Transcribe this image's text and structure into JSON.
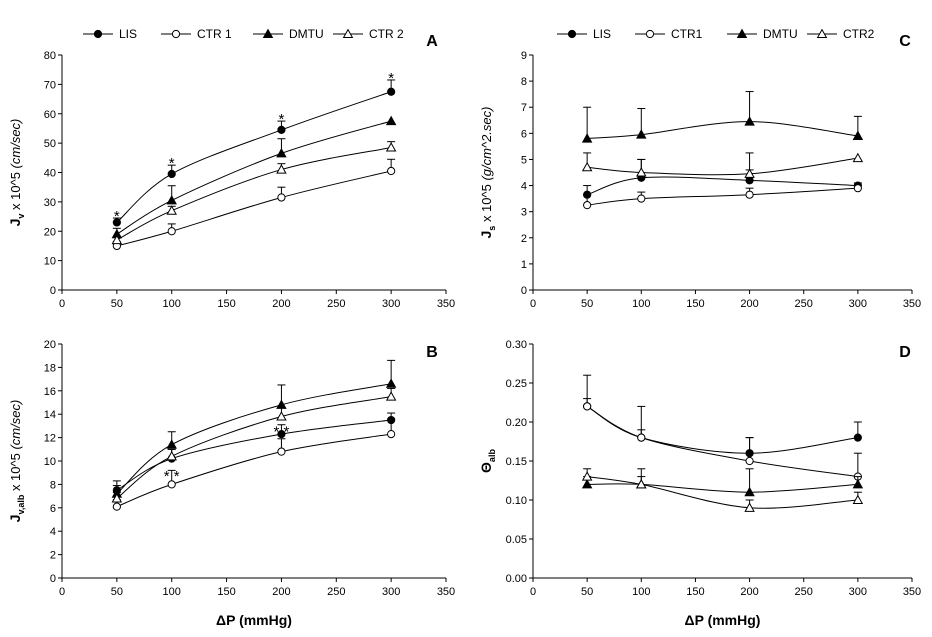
{
  "legend_left": [
    "LIS",
    "CTR 1",
    "DMTU",
    "CTR 2"
  ],
  "legend_right": [
    "LIS",
    "CTR1",
    "DMTU",
    "CTR2"
  ],
  "xlabel": "ΔP (mmHg)",
  "series_styles": {
    "LIS": {
      "marker": "circle",
      "filled": true
    },
    "CTR 1": {
      "marker": "circle",
      "filled": false
    },
    "DMTU": {
      "marker": "triangle",
      "filled": true
    },
    "CTR 2": {
      "marker": "triangle",
      "filled": false
    }
  },
  "chart_data": [
    {
      "panel": "A",
      "type": "line",
      "ylabel": "Jv x 10^5 (cm/sec)",
      "ylabel_parts": [
        "J",
        "v",
        " x 10^5 ",
        "(cm/sec)"
      ],
      "xlim": [
        0,
        350
      ],
      "ylim": [
        0,
        80
      ],
      "xticks": [
        "0",
        "50",
        "100",
        "150",
        "200",
        "250",
        "300",
        "350"
      ],
      "yticks": [
        "0",
        "10",
        "20",
        "30",
        "40",
        "50",
        "60",
        "70",
        "80"
      ],
      "x": [
        50,
        100,
        200,
        300
      ],
      "series": [
        {
          "name": "LIS",
          "values": [
            23,
            39.5,
            54.5,
            67.5
          ],
          "error": [
            1.5,
            3,
            3,
            4
          ]
        },
        {
          "name": "CTR 1",
          "values": [
            15,
            20,
            31.5,
            40.5
          ],
          "error": [
            1.5,
            2.5,
            3.5,
            4
          ]
        },
        {
          "name": "DMTU",
          "values": [
            19,
            30.5,
            46.5,
            57.5
          ],
          "error": [
            2,
            5,
            5,
            0
          ]
        },
        {
          "name": "CTR 2",
          "values": [
            17,
            27,
            41,
            48.5
          ],
          "error": [
            1,
            1.5,
            2,
            2
          ]
        }
      ],
      "annotations": [
        {
          "text": "*",
          "x": 50,
          "y": 25.5
        },
        {
          "text": "*",
          "x": 100,
          "y": 43.5
        },
        {
          "text": "*",
          "x": 200,
          "y": 58.5
        },
        {
          "text": "*",
          "x": 300,
          "y": 72.5
        }
      ]
    },
    {
      "panel": "C",
      "type": "line",
      "ylabel": "Js x 10^5 (g/cm^2.sec)",
      "ylabel_parts": [
        "J",
        "s",
        " x 10^5 ",
        "(g/cm^2.sec)"
      ],
      "xlim": [
        0,
        350
      ],
      "ylim": [
        0,
        9
      ],
      "xticks": [
        "0",
        "50",
        "100",
        "150",
        "200",
        "250",
        "300",
        "350"
      ],
      "yticks": [
        "0",
        "1",
        "2",
        "3",
        "4",
        "5",
        "6",
        "7",
        "8",
        "9"
      ],
      "x": [
        50,
        100,
        200,
        300
      ],
      "series": [
        {
          "name": "LIS",
          "values": [
            3.65,
            4.3,
            4.2,
            4.0
          ],
          "error": [
            0.35,
            0.7,
            0.4,
            0
          ]
        },
        {
          "name": "CTR1",
          "values": [
            3.25,
            3.5,
            3.65,
            3.9
          ],
          "error": [
            0.4,
            0.25,
            0.25,
            0.2
          ]
        },
        {
          "name": "DMTU",
          "values": [
            5.8,
            5.95,
            6.45,
            5.9
          ],
          "error": [
            1.2,
            1.0,
            1.15,
            0.75
          ]
        },
        {
          "name": "CTR2",
          "values": [
            4.7,
            4.5,
            4.45,
            5.05
          ],
          "error": [
            0.55,
            0.5,
            0.8,
            0
          ]
        }
      ],
      "annotations": []
    },
    {
      "panel": "B",
      "type": "line",
      "ylabel": "Jv,alb x 10^5 (cm/sec)",
      "ylabel_parts": [
        "J",
        "v,alb",
        " x 10^5 ",
        "(cm/sec)"
      ],
      "xlim": [
        0,
        350
      ],
      "ylim": [
        0,
        20
      ],
      "xticks": [
        "0",
        "50",
        "100",
        "150",
        "200",
        "250",
        "300",
        "350"
      ],
      "yticks": [
        "0",
        "2",
        "4",
        "6",
        "8",
        "10",
        "12",
        "14",
        "16",
        "18",
        "20"
      ],
      "x": [
        50,
        100,
        200,
        300
      ],
      "series": [
        {
          "name": "LIS",
          "values": [
            7.5,
            10.2,
            12.3,
            13.5
          ],
          "error": [
            0.8,
            0.8,
            0.8,
            0.6
          ]
        },
        {
          "name": "CTR 1",
          "values": [
            6.1,
            8.0,
            10.8,
            12.3
          ],
          "error": [
            0.6,
            1.2,
            1.1,
            1.3
          ]
        },
        {
          "name": "DMTU",
          "values": [
            7.2,
            11.4,
            14.8,
            16.6
          ],
          "error": [
            0.7,
            1.1,
            1.7,
            2.0
          ]
        },
        {
          "name": "CTR 2",
          "values": [
            6.8,
            10.4,
            13.8,
            15.5
          ],
          "error": [
            0.5,
            0.6,
            0.8,
            0.7
          ]
        }
      ],
      "annotations": [
        {
          "text": "* *",
          "x": 100,
          "y": 8.8
        },
        {
          "text": "* *",
          "x": 200,
          "y": 12.6
        }
      ]
    },
    {
      "panel": "D",
      "type": "line",
      "ylabel": "Θalb",
      "ylabel_parts": [
        "Θ",
        "alb",
        "",
        ""
      ],
      "xlim": [
        0,
        350
      ],
      "ylim": [
        0,
        0.3
      ],
      "xticks": [
        "0",
        "50",
        "100",
        "150",
        "200",
        "250",
        "300",
        "350"
      ],
      "yticks": [
        "0.00",
        "0.05",
        "0.10",
        "0.15",
        "0.20",
        "0.25",
        "0.30"
      ],
      "x": [
        50,
        100,
        200,
        300
      ],
      "series": [
        {
          "name": "LIS",
          "values": [
            0.22,
            0.18,
            0.16,
            0.18
          ],
          "error": [
            0.04,
            0.04,
            0.02,
            0.02
          ]
        },
        {
          "name": "CTR1",
          "values": [
            0.22,
            0.18,
            0.15,
            0.13
          ],
          "error": [
            0.01,
            0.01,
            0.03,
            0.03
          ]
        },
        {
          "name": "DMTU",
          "values": [
            0.12,
            0.12,
            0.11,
            0.12
          ],
          "error": [
            0.01,
            0.02,
            0.03,
            0.01
          ]
        },
        {
          "name": "CTR2",
          "values": [
            0.13,
            0.12,
            0.09,
            0.1
          ],
          "error": [
            0.01,
            0.01,
            0.01,
            0.01
          ]
        }
      ],
      "annotations": []
    }
  ]
}
